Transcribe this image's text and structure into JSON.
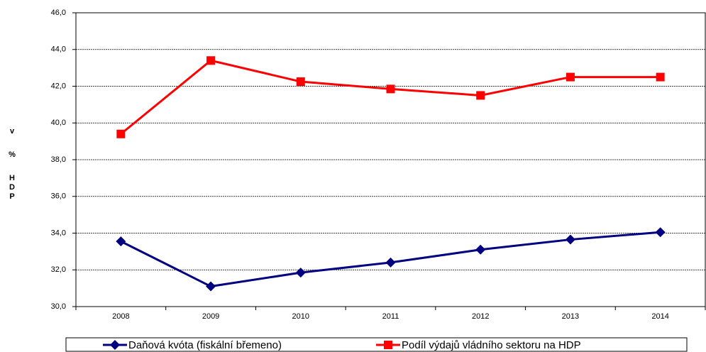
{
  "chart_data": {
    "type": "line",
    "ylabel": "v % HDP",
    "categories": [
      "2008",
      "2009",
      "2010",
      "2011",
      "2012",
      "2013",
      "2014"
    ],
    "series": [
      {
        "name": "Daňová kvóta (fiskální břemeno)",
        "color": "#000080",
        "marker": "diamond",
        "values": [
          33.55,
          31.1,
          31.85,
          32.4,
          33.1,
          33.65,
          34.05
        ]
      },
      {
        "name": "Podíl výdajů vládního sektoru na HDP",
        "color": "#ff0000",
        "marker": "square",
        "values": [
          39.4,
          43.4,
          42.25,
          41.85,
          41.5,
          42.5,
          42.5
        ]
      }
    ],
    "ylim": [
      30,
      46
    ],
    "yticks": [
      {
        "value": 30,
        "label": "30,0"
      },
      {
        "value": 32,
        "label": "32,0"
      },
      {
        "value": 34,
        "label": "34,0"
      },
      {
        "value": 36,
        "label": "36,0"
      },
      {
        "value": 38,
        "label": "38,0"
      },
      {
        "value": 40,
        "label": "40,0"
      },
      {
        "value": 42,
        "label": "42,0"
      },
      {
        "value": 44,
        "label": "44,0"
      },
      {
        "value": 46,
        "label": "46,0"
      }
    ],
    "grid": true,
    "legend": "bottom"
  }
}
